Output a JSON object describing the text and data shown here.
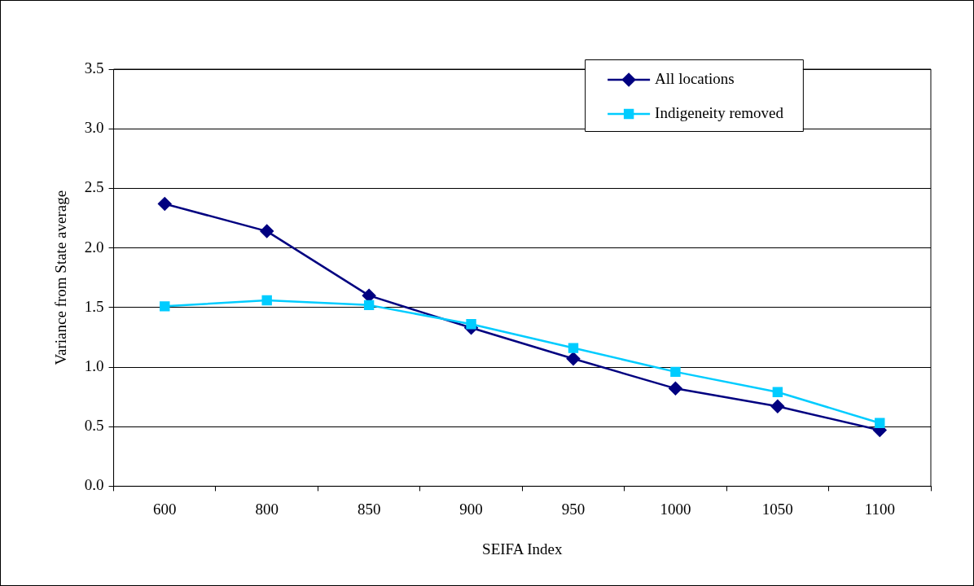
{
  "chart_data": {
    "type": "line",
    "xlabel": "SEIFA Index",
    "ylabel": "Variance from State average",
    "categories": [
      "600",
      "800",
      "850",
      "900",
      "950",
      "1000",
      "1050",
      "1100"
    ],
    "series": [
      {
        "name": "All locations",
        "color": "#000080",
        "marker": "diamond",
        "values": [
          2.37,
          2.14,
          1.6,
          1.33,
          1.07,
          0.82,
          0.67,
          0.47
        ]
      },
      {
        "name": "Indigeneity removed",
        "color": "#00ccff",
        "marker": "square",
        "values": [
          1.51,
          1.56,
          1.52,
          1.36,
          1.16,
          0.96,
          0.79,
          0.53
        ]
      }
    ],
    "ylim": [
      0,
      3.5
    ],
    "yticks": [
      {
        "value": 0,
        "label": "0.0"
      },
      {
        "value": 0.5,
        "label": "0.5"
      },
      {
        "value": 1,
        "label": "1.0"
      },
      {
        "value": 1.5,
        "label": "1.5"
      },
      {
        "value": 2,
        "label": "2.0"
      },
      {
        "value": 2.5,
        "label": "2.5"
      },
      {
        "value": 3,
        "label": "3.0"
      },
      {
        "value": 3.5,
        "label": "3.5"
      }
    ],
    "grid": "y",
    "legend": "top right",
    "line_style": "solid"
  }
}
